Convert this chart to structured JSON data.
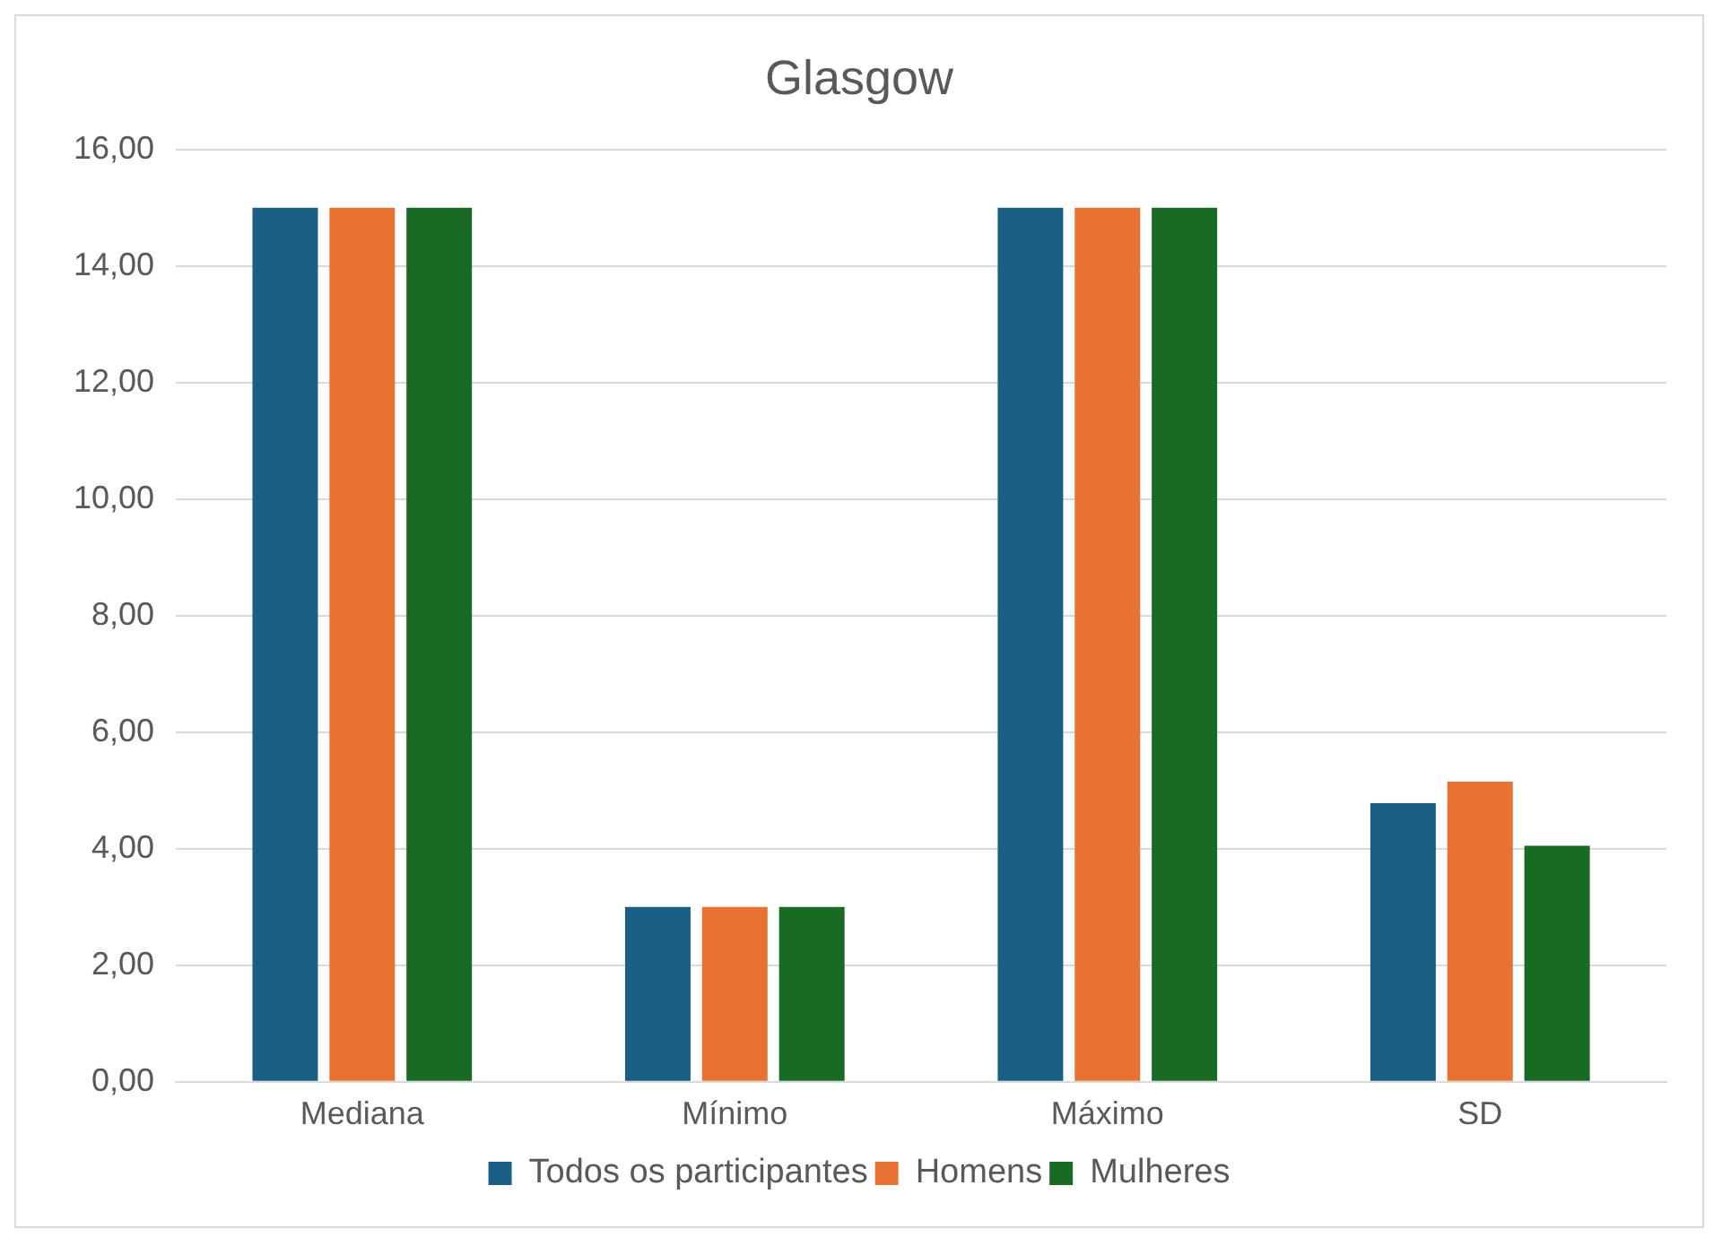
{
  "chart_data": {
    "type": "bar",
    "title": "Glasgow",
    "categories": [
      "Mediana",
      "Mínimo",
      "Máximo",
      "SD"
    ],
    "series": [
      {
        "name": "Todos os participantes",
        "color": "#1a5f84",
        "values": [
          15,
          3,
          15,
          4.78
        ]
      },
      {
        "name": "Homens",
        "color": "#e97132",
        "values": [
          15,
          3,
          15,
          5.15
        ]
      },
      {
        "name": "Mulheres",
        "color": "#196b24",
        "values": [
          15,
          3,
          15,
          4.05
        ]
      }
    ],
    "ylim": [
      0,
      16
    ],
    "yticks": [
      {
        "value": 0,
        "label": "0,00"
      },
      {
        "value": 2,
        "label": "2,00"
      },
      {
        "value": 4,
        "label": "4,00"
      },
      {
        "value": 6,
        "label": "6,00"
      },
      {
        "value": 8,
        "label": "8,00"
      },
      {
        "value": 10,
        "label": "10,00"
      },
      {
        "value": 12,
        "label": "12,00"
      },
      {
        "value": 14,
        "label": "14,00"
      },
      {
        "value": 16,
        "label": "16,00"
      }
    ],
    "grid": "y",
    "legend": "bottom"
  }
}
